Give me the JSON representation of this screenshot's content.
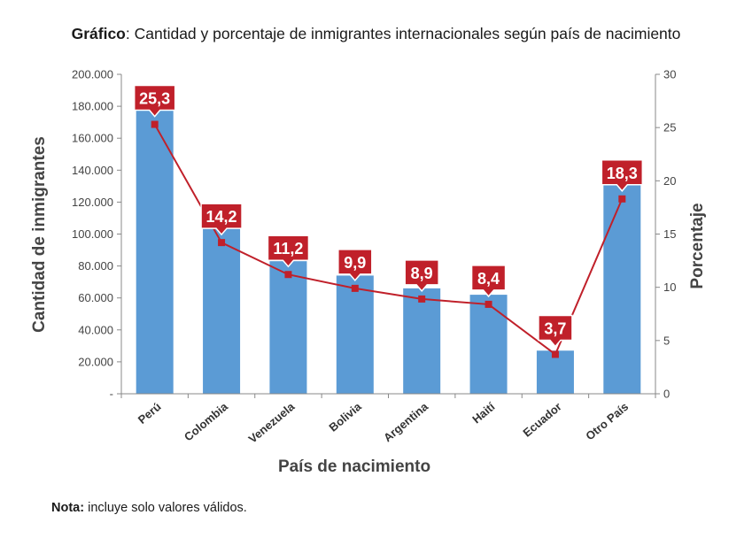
{
  "title": {
    "bold": "Gráfico",
    "rest": ": Cantidad y porcentaje de inmigrantes internacionales según país de nacimiento"
  },
  "note": {
    "bold": "Nota:",
    "rest": " incluye solo valores válidos."
  },
  "chart_data": {
    "type": "bar",
    "categories": [
      "Perú",
      "Colombia",
      "Venezuela",
      "Bolivia",
      "Argentina",
      "Haití",
      "Ecuador",
      "Otro País"
    ],
    "series": [
      {
        "axis": "left",
        "type": "bar",
        "color": "#5b9bd5",
        "values": [
          187500,
          105500,
          83000,
          74000,
          66000,
          62000,
          27000,
          136000
        ]
      },
      {
        "axis": "right",
        "type": "line",
        "color": "#c0202a",
        "values": [
          25.3,
          14.2,
          11.2,
          9.9,
          8.9,
          8.4,
          3.7,
          18.3
        ],
        "labels": [
          "25,3",
          "14,2",
          "11,2",
          "9,9",
          "8,9",
          "8,4",
          "3,7",
          "18,3"
        ]
      }
    ],
    "xlabel": "País de nacimiento",
    "ylabel": "Cantidad de inmigrantes",
    "y2label": "Porcentaje",
    "ylim": [
      0,
      200000
    ],
    "y2lim": [
      0,
      30
    ],
    "yticks": [
      "-",
      "20.000",
      "40.000",
      "60.000",
      "80.000",
      "100.000",
      "120.000",
      "140.000",
      "160.000",
      "180.000",
      "200.000"
    ],
    "y2ticks": [
      "0",
      "5",
      "10",
      "15",
      "20",
      "25",
      "30"
    ],
    "grid": false,
    "legend": "none"
  }
}
